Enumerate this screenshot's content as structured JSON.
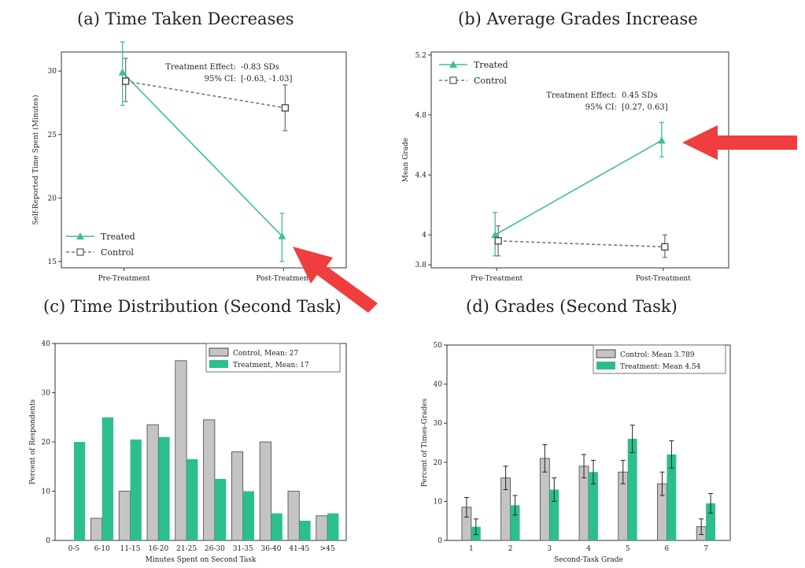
{
  "colors": {
    "treated": "#3fbf94",
    "control": "#777777",
    "arrow": "#f03d3d",
    "bar_control": "#c4c4c4",
    "bar_treated": "#2cbf8c"
  },
  "chart_data": [
    {
      "id": "a",
      "type": "line",
      "title": "(a) Time Taken Decreases",
      "xlabel": "",
      "ylabel": "Self-Reported Time Spent (Minutes)",
      "categories": [
        "Pre-Treatment",
        "Post-Treatment"
      ],
      "ylim": [
        14.5,
        31.5
      ],
      "yticks": [
        15,
        20,
        25,
        30
      ],
      "series": [
        {
          "name": "Treated",
          "values": [
            29.9,
            17.0
          ],
          "err": [
            [
              27.3,
              32.3
            ],
            [
              15.0,
              18.8
            ]
          ]
        },
        {
          "name": "Control",
          "values": [
            29.2,
            27.1
          ],
          "err": [
            [
              27.6,
              31.0
            ],
            [
              25.3,
              28.9
            ]
          ]
        }
      ],
      "legend_position": "bottom-left",
      "annotation": {
        "line1_label": "Treatment Effect:",
        "line1_value": "-0.83 SDs",
        "line2_label": "95% CI:",
        "line2_value": "[-0.63, -1.03]"
      }
    },
    {
      "id": "b",
      "type": "line",
      "title": "(b) Average Grades Increase",
      "xlabel": "",
      "ylabel": "Mean Grade",
      "categories": [
        "Pre-Treatment",
        "Post-Treatment"
      ],
      "ylim": [
        3.78,
        5.22
      ],
      "yticks": [
        3.8,
        4,
        4.4,
        4.8,
        5.2
      ],
      "ytick_labels": [
        "3.8",
        "4",
        "4.4",
        "4.8",
        "5.2"
      ],
      "series": [
        {
          "name": "Treated",
          "values": [
            4.0,
            4.63
          ],
          "err": [
            [
              3.86,
              4.15
            ],
            [
              4.52,
              4.75
            ]
          ]
        },
        {
          "name": "Control",
          "values": [
            3.96,
            3.92
          ],
          "err": [
            [
              3.86,
              4.06
            ],
            [
              3.85,
              4.0
            ]
          ]
        }
      ],
      "legend_position": "top-left",
      "annotation": {
        "line1_label": "Treatment Effect:",
        "line1_value": "0.45 SDs",
        "line2_label": "95% CI:",
        "line2_value": "[0.27, 0.63]"
      }
    },
    {
      "id": "c",
      "type": "bar",
      "title": "(c) Time Distribution (Second Task)",
      "xlabel": "Minutes Spent on Second Task",
      "ylabel": "Percent of Respondents",
      "categories": [
        "0-5",
        "6-10",
        "11-15",
        "16-20",
        "21-25",
        "26-30",
        "31-35",
        "36-40",
        "41-45",
        ">45"
      ],
      "ylim": [
        0,
        40
      ],
      "yticks": [
        0,
        10,
        20,
        30,
        40
      ],
      "series": [
        {
          "name": "Control, Mean: 27",
          "values": [
            0,
            4.5,
            10,
            23.5,
            36.5,
            24.5,
            18,
            20,
            10,
            5
          ]
        },
        {
          "name": "Treatment, Mean: 17",
          "values": [
            20,
            25,
            20.5,
            21,
            16.5,
            12.5,
            10,
            5.5,
            4,
            5.5
          ]
        }
      ],
      "legend_position": "top-right"
    },
    {
      "id": "d",
      "type": "bar",
      "title": "(d) Grades (Second Task)",
      "xlabel": "Second-Task Grade",
      "ylabel": "Percent of Times-Grades",
      "categories": [
        "1",
        "2",
        "3",
        "4",
        "5",
        "6",
        "7"
      ],
      "ylim": [
        0,
        50
      ],
      "yticks": [
        0,
        10,
        20,
        30,
        40,
        50
      ],
      "series": [
        {
          "name": "Control: Mean 3.789",
          "values": [
            8.5,
            16,
            21,
            19,
            17.5,
            14.5,
            3.5
          ],
          "err": [
            2.5,
            3,
            3.5,
            3,
            3,
            3,
            2
          ]
        },
        {
          "name": "Treatment: Mean 4.54",
          "values": [
            3.5,
            9,
            13,
            17.5,
            26,
            22,
            9.5
          ],
          "err": [
            2,
            2.5,
            3,
            3,
            3.5,
            3.5,
            2.5
          ]
        }
      ],
      "legend_position": "top-right"
    }
  ]
}
